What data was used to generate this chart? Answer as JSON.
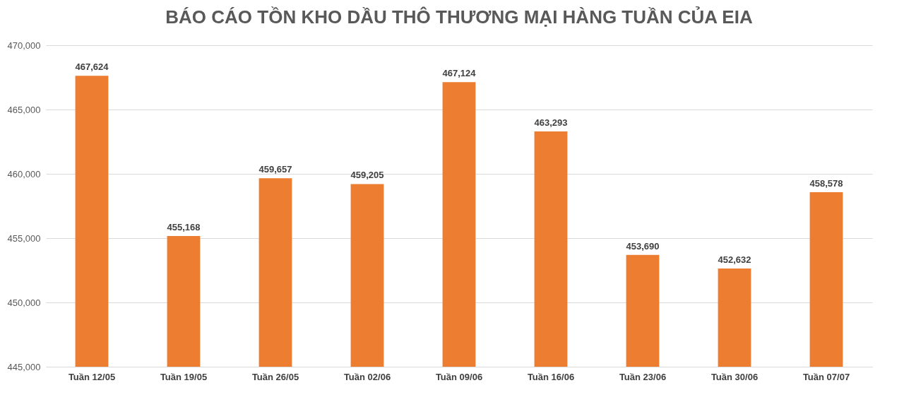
{
  "chart_data": {
    "type": "bar",
    "title": "BÁO CÁO TỒN KHO DẦU THÔ THƯƠNG MẠI HÀNG TUẦN CỦA EIA",
    "categories": [
      "Tuần 12/05",
      "Tuần 19/05",
      "Tuần 26/05",
      "Tuần 02/06",
      "Tuần 09/06",
      "Tuần 16/06",
      "Tuần 23/06",
      "Tuần 30/06",
      "Tuần 07/07"
    ],
    "values": [
      467624,
      455168,
      459657,
      459205,
      467124,
      463293,
      453690,
      452632,
      458578
    ],
    "value_labels": [
      "467,624",
      "455,168",
      "459,657",
      "459,205",
      "467,124",
      "463,293",
      "453,690",
      "452,632",
      "458,578"
    ],
    "color": "#ed7d31",
    "ylim": [
      445000,
      470000
    ],
    "yticks": [
      {
        "value": 445000,
        "label": "445,000"
      },
      {
        "value": 450000,
        "label": "450,000"
      },
      {
        "value": 455000,
        "label": "455,000"
      },
      {
        "value": 460000,
        "label": "460,000"
      },
      {
        "value": 465000,
        "label": "465,000"
      },
      {
        "value": 470000,
        "label": "470,000"
      }
    ],
    "grid": "y"
  }
}
